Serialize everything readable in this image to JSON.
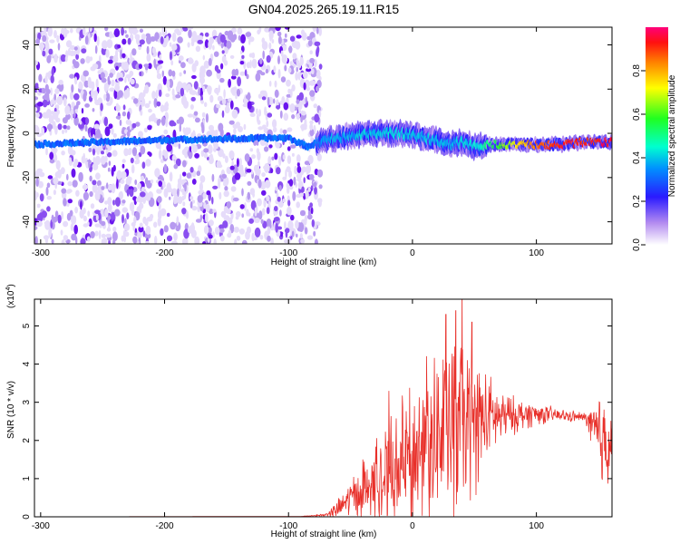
{
  "title": "GN04.2025.265.19.11.R15",
  "chart_data": [
    {
      "type": "heatmap",
      "title": "GN04.2025.265.19.11.R15",
      "xlabel": "Height of straight line (km)",
      "ylabel": "Frequency (Hz)",
      "xlim": [
        -305,
        161
      ],
      "ylim": [
        -50,
        48
      ],
      "xticks": [
        -300,
        -200,
        -100,
        0,
        100
      ],
      "yticks": [
        -40,
        -20,
        0,
        20,
        40
      ],
      "colorbar": {
        "label": "Normalized spectral amplitude",
        "range": [
          0,
          1
        ],
        "ticks": [
          0.0,
          0.2,
          0.4,
          0.6,
          0.8
        ],
        "tick_labels": [
          "0.0",
          "0.2",
          "0.4",
          "0.6",
          "0.8"
        ]
      },
      "noise_region_x": [
        -305,
        -80
      ],
      "trace": {
        "x": [
          -305,
          -200,
          -100,
          -85,
          -70,
          -50,
          -30,
          -10,
          0,
          10,
          20,
          30,
          40,
          50,
          60,
          80,
          100,
          120,
          140,
          161
        ],
        "frequency": [
          -5,
          -3,
          -2,
          -6,
          -3,
          -1,
          0,
          0,
          -1,
          -2,
          -3,
          -5,
          -4,
          -6,
          -5,
          -5,
          -5,
          -5,
          -4,
          -4
        ],
        "amplitude": [
          0.2,
          0.2,
          0.22,
          0.3,
          0.35,
          0.38,
          0.4,
          0.42,
          0.4,
          0.4,
          0.38,
          0.38,
          0.4,
          0.42,
          0.5,
          0.7,
          0.85,
          0.92,
          0.9,
          0.95
        ]
      }
    },
    {
      "type": "line",
      "title": "",
      "xlabel": "Height of straight line (km)",
      "ylabel": "SNR (10 * v/v)",
      "scale_label": "(x10",
      "scale_exponent": "4",
      "scale_suffix": ")",
      "color": "#e8302a",
      "xlim": [
        -305,
        161
      ],
      "ylim": [
        0,
        5.7
      ],
      "xticks": [
        -300,
        -200,
        -100,
        0,
        100
      ],
      "yticks": [
        0,
        1,
        2,
        3,
        4,
        5
      ],
      "envelope": {
        "x": [
          -305,
          -90,
          -70,
          -60,
          -50,
          -40,
          -30,
          -20,
          -10,
          0,
          10,
          20,
          30,
          40,
          50,
          60,
          70,
          80,
          100,
          120,
          140,
          150,
          161
        ],
        "mean": [
          0.0,
          0.01,
          0.05,
          0.2,
          0.5,
          0.7,
          0.9,
          1.1,
          1.3,
          1.6,
          1.8,
          2.0,
          2.2,
          2.4,
          2.5,
          2.6,
          2.6,
          2.65,
          2.7,
          2.65,
          2.6,
          2.0,
          2.1
        ],
        "spread": [
          0.0,
          0.0,
          0.05,
          0.3,
          0.6,
          1.0,
          1.3,
          1.6,
          1.9,
          2.3,
          2.6,
          2.9,
          3.0,
          2.8,
          2.2,
          1.4,
          0.9,
          0.6,
          0.35,
          0.2,
          0.15,
          1.6,
          1.8
        ],
        "peaks": [
          {
            "x": 40,
            "y": 5.7
          },
          {
            "x": 27,
            "y": 5.3
          },
          {
            "x": 35,
            "y": 5.4
          },
          {
            "x": 48,
            "y": 5.1
          },
          {
            "x": -19,
            "y": 3.3
          },
          {
            "x": -40,
            "y": 1.5
          }
        ]
      }
    }
  ]
}
